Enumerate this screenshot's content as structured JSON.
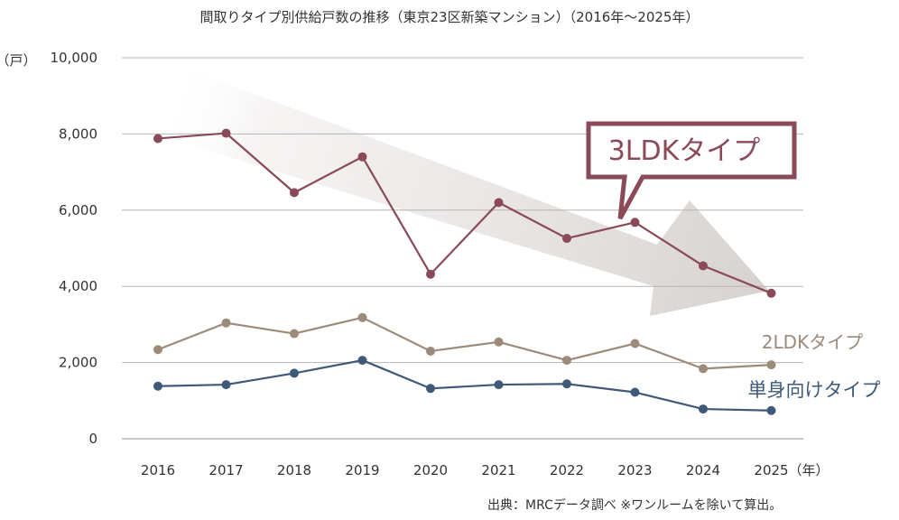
{
  "chart_data": {
    "type": "line",
    "title": "間取りタイプ別供給戸数の推移（東京23区新築マンション）（2016年〜2025年）",
    "ylabel": "（戸）",
    "xlabel": "（年）",
    "ylim": [
      0,
      10000
    ],
    "yticks": [
      "0",
      "2,000",
      "4,000",
      "6,000",
      "8,000",
      "10,000"
    ],
    "yticks_values": [
      0,
      2000,
      4000,
      6000,
      8000,
      10000
    ],
    "categories": [
      "2016",
      "2017",
      "2018",
      "2019",
      "2020",
      "2021",
      "2022",
      "2023",
      "2024",
      "2025"
    ],
    "grid": true,
    "series": [
      {
        "name": "3LDKタイプ",
        "color": "#8a4a58",
        "values": [
          7880,
          8020,
          6460,
          7400,
          4320,
          6200,
          5260,
          5680,
          4540,
          3820
        ]
      },
      {
        "name": "2LDKタイプ",
        "color": "#9c8a7a",
        "values": [
          2340,
          3040,
          2760,
          3180,
          2300,
          2540,
          2060,
          2500,
          1840,
          1940
        ]
      },
      {
        "name": "単身向けタイプ",
        "color": "#3e5a78",
        "values": [
          1380,
          1420,
          1720,
          2060,
          1320,
          1420,
          1440,
          1220,
          780,
          740
        ]
      }
    ],
    "source": "出典：MRCデータ調べ ※ワンルームを除いて算出。"
  }
}
